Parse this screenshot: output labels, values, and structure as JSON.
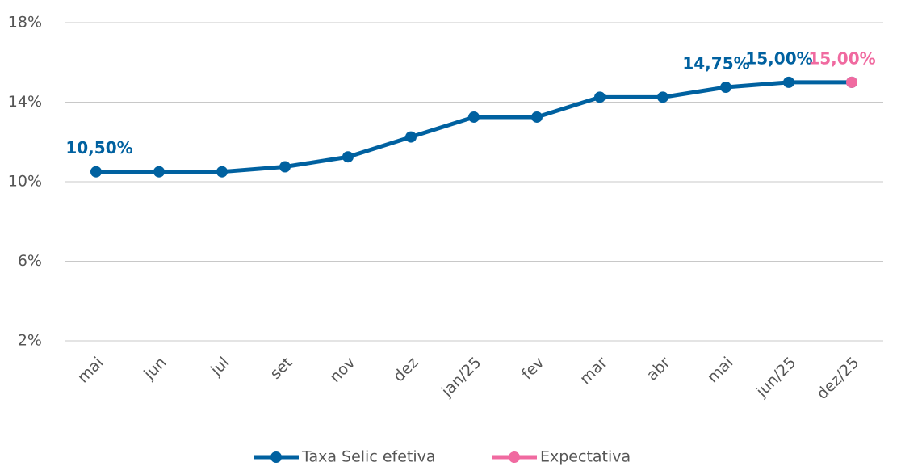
{
  "chart_data": {
    "type": "line",
    "categories": [
      "mai",
      "jun",
      "jul",
      "set",
      "nov",
      "dez",
      "jan/25",
      "fev",
      "mar",
      "abr",
      "mai",
      "jun/25",
      "dez/25"
    ],
    "series": [
      {
        "name": "Taxa Selic efetiva",
        "color": "#0061a0",
        "values": [
          10.5,
          10.5,
          10.5,
          10.75,
          11.25,
          12.25,
          13.25,
          13.25,
          14.25,
          14.25,
          14.75,
          15.0,
          15.0
        ],
        "value_labels": [
          "10,50%",
          null,
          null,
          null,
          null,
          null,
          null,
          null,
          null,
          null,
          "14,75%",
          "15,00%",
          null
        ]
      },
      {
        "name": "Expectativa",
        "color": "#f06aa0",
        "values": [
          null,
          null,
          null,
          null,
          null,
          null,
          null,
          null,
          null,
          null,
          null,
          null,
          15.0
        ],
        "value_labels": [
          null,
          null,
          null,
          null,
          null,
          null,
          null,
          null,
          null,
          null,
          null,
          null,
          "15,00%"
        ]
      }
    ],
    "ylim": [
      2,
      18
    ],
    "yticks": [
      {
        "value": 2,
        "label": "2%"
      },
      {
        "value": 6,
        "label": "6%"
      },
      {
        "value": 10,
        "label": "10%"
      },
      {
        "value": 14,
        "label": "14%"
      },
      {
        "value": 18,
        "label": "18%"
      }
    ],
    "grid": true,
    "legend": "bottom"
  }
}
